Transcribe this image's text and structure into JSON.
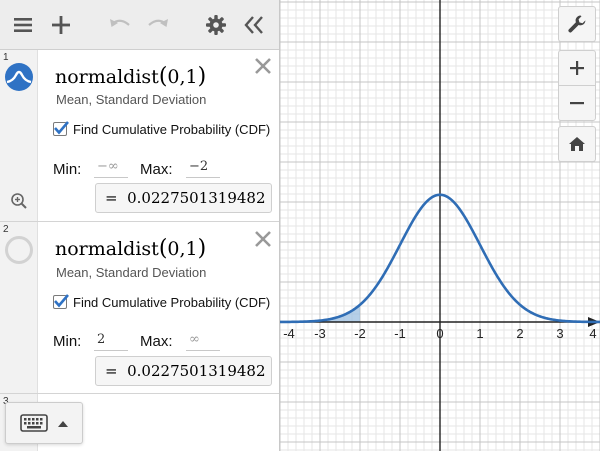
{
  "colors": {
    "curve": "#2f6db5",
    "shade": "#9cbfe0",
    "toolbar": "#ededed",
    "accent": "#2f72c4"
  },
  "toolbar": {
    "icons": [
      "hamburger-icon",
      "plus-icon",
      "undo-icon",
      "redo-icon",
      "gear-icon",
      "collapse-icon"
    ]
  },
  "expressions": [
    {
      "index": "1",
      "fn_name": "normaldist",
      "args": "0,1",
      "params": "Mean, Standard Deviation",
      "cdf_label": "Find Cumulative Probability (CDF)",
      "cdf_checked": true,
      "min_label": "Min:",
      "min_value": "−∞",
      "max_label": "Max:",
      "max_value": "−2",
      "result_prefix": "=",
      "result_value": "0.0227501319482"
    },
    {
      "index": "2",
      "fn_name": "normaldist",
      "args": "0,1",
      "params": "Mean, Standard Deviation",
      "cdf_label": "Find Cumulative Probability (CDF)",
      "cdf_checked": true,
      "min_label": "Min:",
      "min_value": "2",
      "max_label": "Max:",
      "max_value": "∞",
      "result_prefix": "=",
      "result_value": "0.0227501319482"
    },
    {
      "index": "3"
    }
  ],
  "graph": {
    "x_ticks": [
      "-4",
      "-3",
      "-2",
      "-1",
      "0",
      "1",
      "2",
      "3",
      "4"
    ],
    "x_range": [
      -4,
      4
    ],
    "curve": {
      "mean": 0,
      "sd": 1
    },
    "shaded_region": {
      "from": -4,
      "to": -2
    },
    "grid": true
  },
  "right_buttons": [
    "wrench-icon",
    "zoom-in-icon",
    "zoom-out-icon",
    "home-icon"
  ]
}
